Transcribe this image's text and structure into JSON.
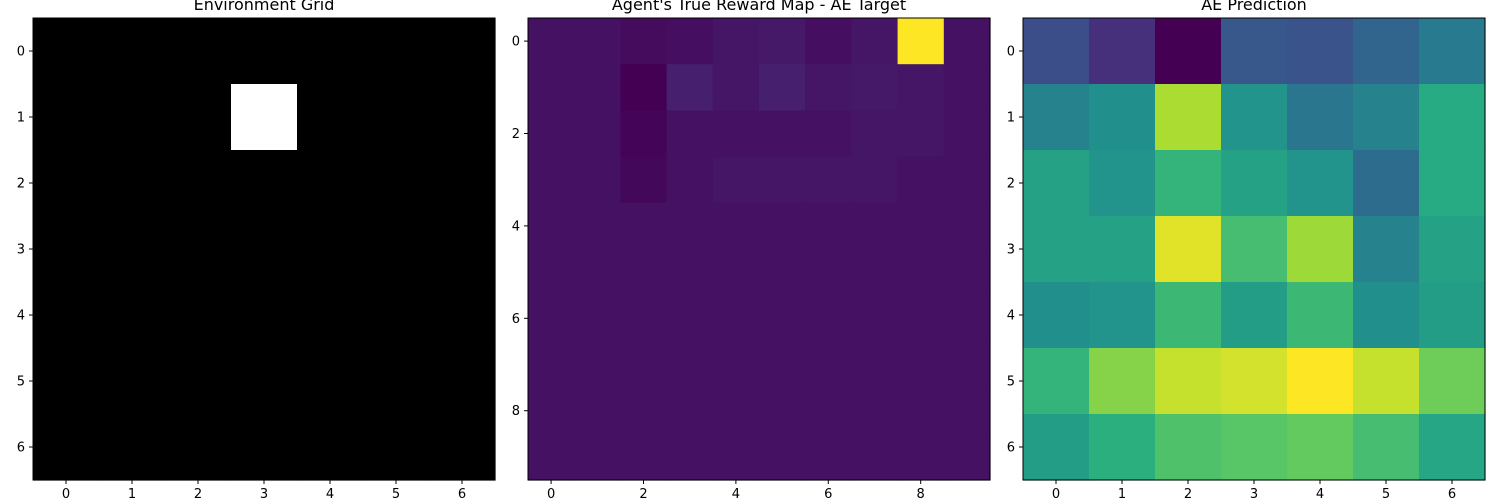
{
  "chart_data": [
    {
      "type": "heatmap",
      "title": "Environment Grid",
      "colormap": "gray",
      "vmin": 0,
      "vmax": 1,
      "xticks": [
        0,
        1,
        2,
        3,
        4,
        5,
        6
      ],
      "yticks": [
        0,
        1,
        2,
        3,
        4,
        5,
        6
      ],
      "values": [
        [
          0,
          0,
          0,
          0,
          0,
          0,
          0
        ],
        [
          0,
          0,
          0,
          1,
          0,
          0,
          0
        ],
        [
          0,
          0,
          0,
          0,
          0,
          0,
          0
        ],
        [
          0,
          0,
          0,
          0,
          0,
          0,
          0
        ],
        [
          0,
          0,
          0,
          0,
          0,
          0,
          0
        ],
        [
          0,
          0,
          0,
          0,
          0,
          0,
          0
        ],
        [
          0,
          0,
          0,
          0,
          0,
          0,
          0
        ]
      ]
    },
    {
      "type": "heatmap",
      "title": "Agent's True Reward Map - AE Target",
      "colormap": "viridis",
      "vmin": 0,
      "vmax": 1,
      "xticks": [
        0,
        2,
        4,
        6,
        8
      ],
      "yticks": [
        0,
        2,
        4,
        6,
        8
      ],
      "values": [
        [
          0.05,
          0.05,
          0.03,
          0.04,
          0.06,
          0.07,
          0.04,
          0.06,
          1.0,
          0.05
        ],
        [
          0.05,
          0.05,
          0.0,
          0.09,
          0.06,
          0.09,
          0.06,
          0.07,
          0.06,
          0.05
        ],
        [
          0.05,
          0.05,
          0.01,
          0.05,
          0.05,
          0.05,
          0.05,
          0.06,
          0.06,
          0.05
        ],
        [
          0.05,
          0.05,
          0.02,
          0.05,
          0.06,
          0.06,
          0.06,
          0.06,
          0.05,
          0.05
        ],
        [
          0.05,
          0.05,
          0.05,
          0.05,
          0.05,
          0.05,
          0.05,
          0.05,
          0.05,
          0.05
        ],
        [
          0.05,
          0.05,
          0.05,
          0.05,
          0.05,
          0.05,
          0.05,
          0.05,
          0.05,
          0.05
        ],
        [
          0.05,
          0.05,
          0.05,
          0.05,
          0.05,
          0.05,
          0.05,
          0.05,
          0.05,
          0.05
        ],
        [
          0.05,
          0.05,
          0.05,
          0.05,
          0.05,
          0.05,
          0.05,
          0.05,
          0.05,
          0.05
        ],
        [
          0.05,
          0.05,
          0.05,
          0.05,
          0.05,
          0.05,
          0.05,
          0.05,
          0.05,
          0.05
        ],
        [
          0.05,
          0.05,
          0.05,
          0.05,
          0.05,
          0.05,
          0.05,
          0.05,
          0.05,
          0.05
        ]
      ]
    },
    {
      "type": "heatmap",
      "title": "AE Prediction",
      "colormap": "viridis",
      "vmin": 0,
      "vmax": 1,
      "xticks": [
        0,
        1,
        2,
        3,
        4,
        5,
        6
      ],
      "yticks": [
        0,
        1,
        2,
        3,
        4,
        5,
        6
      ],
      "values": [
        [
          0.24,
          0.14,
          0.0,
          0.28,
          0.26,
          0.33,
          0.42
        ],
        [
          0.45,
          0.5,
          0.88,
          0.52,
          0.4,
          0.45,
          0.62
        ],
        [
          0.58,
          0.52,
          0.66,
          0.58,
          0.52,
          0.36,
          0.62
        ],
        [
          0.58,
          0.58,
          0.96,
          0.7,
          0.86,
          0.45,
          0.58
        ],
        [
          0.5,
          0.52,
          0.68,
          0.56,
          0.68,
          0.5,
          0.56
        ],
        [
          0.66,
          0.82,
          0.92,
          0.94,
          1.0,
          0.92,
          0.78
        ],
        [
          0.56,
          0.64,
          0.72,
          0.74,
          0.76,
          0.7,
          0.6
        ]
      ]
    }
  ]
}
